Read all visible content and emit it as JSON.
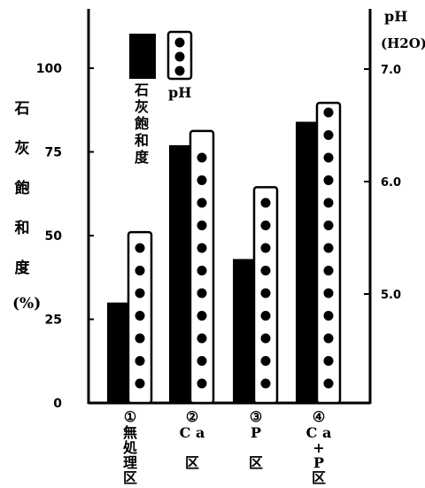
{
  "chart_data": {
    "type": "bar",
    "categories": [
      {
        "num": "①",
        "lines": [
          "無",
          "処",
          "理",
          "区"
        ]
      },
      {
        "num": "②",
        "lines": [
          "C a",
          "",
          "区"
        ]
      },
      {
        "num": "③",
        "lines": [
          "P",
          "",
          "区"
        ]
      },
      {
        "num": "④",
        "lines": [
          "C a",
          "+",
          "P",
          "区"
        ]
      }
    ],
    "series": [
      {
        "name": "石灰飽和度",
        "axis": "left",
        "style": "solid-black",
        "values": [
          30,
          77,
          43,
          84
        ]
      },
      {
        "name": "pH",
        "axis": "right",
        "style": "dotted-white",
        "values": [
          5.55,
          6.45,
          5.95,
          6.7
        ]
      }
    ],
    "ylabel_left": [
      "石",
      "灰",
      "飽",
      "和",
      "度",
      "(%)"
    ],
    "ylabel_right": [
      "pH",
      "(H2O)"
    ],
    "ylim_left": [
      0,
      100
    ],
    "yticks_left": [
      0,
      25,
      50,
      75,
      100
    ],
    "ylim_right": [
      4.0,
      7.0
    ],
    "yticks_right": [
      5.0,
      6.0,
      7.0
    ],
    "ytick_labels_right": [
      "5.0",
      "6.0",
      "7.0"
    ],
    "legend": {
      "placement": "top-center",
      "solid_label": "石灰飽和度",
      "dotted_label": "pH"
    },
    "grid": false
  }
}
